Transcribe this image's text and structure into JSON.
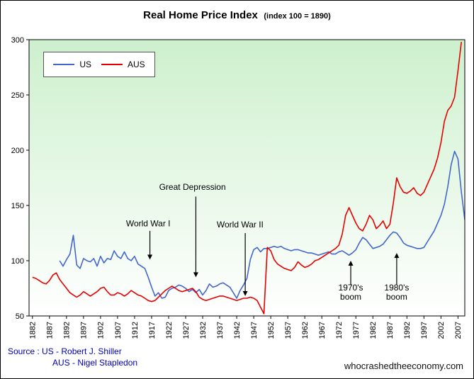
{
  "page": {
    "title": "Real Home Price Index",
    "subtitle": "(index 100 = 1890)"
  },
  "footer": {
    "source_line1": "Source : US - Robert J. Shiller",
    "source_line2": "AUS - Nigel Stapledon",
    "watermark": "whocrashedtheeconomy.com"
  },
  "chart_data": {
    "type": "line",
    "title": "Real Home Price Index",
    "subtitle": "(index 100 = 1890)",
    "legend_position": "top-left",
    "grid": false,
    "plot_bg_top": "#cdf0cd",
    "plot_bg_bottom": "#ffffff",
    "x_range": [
      1881,
      2009
    ],
    "y_range": [
      50,
      300
    ],
    "x_ticks": [
      1882,
      1887,
      1892,
      1897,
      1902,
      1907,
      1912,
      1917,
      1922,
      1927,
      1932,
      1937,
      1942,
      1947,
      1952,
      1957,
      1962,
      1967,
      1972,
      1977,
      1982,
      1987,
      1992,
      1997,
      2002,
      2007
    ],
    "y_ticks": [
      50,
      100,
      150,
      200,
      250,
      300
    ],
    "series": [
      {
        "name": "US",
        "color": "#4466cc",
        "start_year": 1890,
        "values": [
          100,
          95,
          101,
          106,
          123,
          96,
          93,
          102,
          100,
          99,
          102,
          95,
          104,
          98,
          102,
          101,
          109,
          104,
          102,
          108,
          102,
          100,
          104,
          97,
          95,
          93,
          85,
          76,
          68,
          71,
          66,
          67,
          73,
          75,
          76,
          78,
          77,
          75,
          72,
          74,
          71,
          74,
          69,
          73,
          79,
          76,
          77,
          79,
          80,
          78,
          76,
          71,
          66,
          73,
          78,
          84,
          101,
          110,
          112,
          108,
          111,
          111,
          112,
          113,
          112,
          113,
          111,
          110,
          109,
          110,
          110,
          109,
          108,
          107,
          107,
          106,
          105,
          106,
          107,
          108,
          106,
          106,
          108,
          109,
          107,
          105,
          107,
          110,
          116,
          121,
          119,
          115,
          111,
          112,
          113,
          115,
          119,
          123,
          126,
          125,
          121,
          116,
          114,
          113,
          112,
          111,
          111,
          112,
          117,
          122,
          127,
          134,
          141,
          151,
          167,
          187,
          199,
          192,
          162,
          137
        ]
      },
      {
        "name": "AUS",
        "color": "#e60000",
        "start_year": 1882,
        "values": [
          85,
          84,
          82,
          80,
          79,
          82,
          87,
          89,
          83,
          79,
          75,
          71,
          69,
          67,
          69,
          72,
          70,
          68,
          70,
          72,
          75,
          76,
          72,
          69,
          69,
          71,
          70,
          68,
          70,
          73,
          71,
          69,
          68,
          66,
          64,
          63,
          64,
          67,
          70,
          73,
          75,
          77,
          75,
          73,
          72,
          73,
          74,
          75,
          72,
          67,
          65,
          64,
          65,
          66,
          67,
          68,
          68,
          67,
          66,
          65,
          64,
          65,
          66,
          66,
          67,
          66,
          64,
          58,
          52,
          112,
          109,
          101,
          97,
          95,
          93,
          92,
          91,
          94,
          99,
          96,
          94,
          95,
          97,
          100,
          101,
          103,
          105,
          107,
          109,
          111,
          114,
          124,
          141,
          148,
          141,
          134,
          129,
          127,
          133,
          141,
          137,
          129,
          132,
          136,
          129,
          133,
          152,
          175,
          167,
          162,
          161,
          163,
          166,
          161,
          159,
          162,
          169,
          176,
          183,
          193,
          207,
          226,
          236,
          240,
          248,
          272,
          298
        ]
      }
    ],
    "annotations": [
      {
        "text_lines": [
          "World War I"
        ],
        "text_x": 1916,
        "text_y": 131,
        "arrow_x": 1916.5,
        "arrow_from": 127,
        "arrow_to": 101,
        "direction": "down"
      },
      {
        "text_lines": [
          "Great Depression"
        ],
        "text_x": 1929,
        "text_y": 164,
        "arrow_x": 1930,
        "arrow_from": 158,
        "arrow_to": 85,
        "direction": "down"
      },
      {
        "text_lines": [
          "World War II"
        ],
        "text_x": 1943,
        "text_y": 130,
        "arrow_x": 1944.5,
        "arrow_from": 125,
        "arrow_to": 68,
        "direction": "down"
      },
      {
        "text_lines": [
          "1970's",
          "boom"
        ],
        "text_x": 1975.5,
        "text_y": 73,
        "arrow_x": 1975.5,
        "arrow_from": 78,
        "arrow_to": 100,
        "direction": "up"
      },
      {
        "text_lines": [
          "1980's",
          "boom"
        ],
        "text_x": 1989,
        "text_y": 73,
        "arrow_x": 1989,
        "arrow_from": 78,
        "arrow_to": 107,
        "direction": "up"
      }
    ]
  }
}
